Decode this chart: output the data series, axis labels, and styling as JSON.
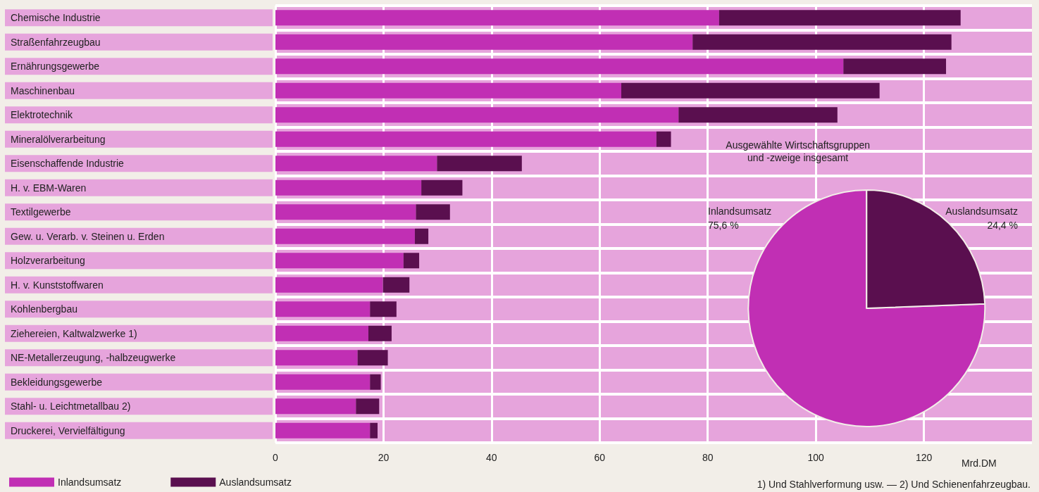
{
  "chart_data": [
    {
      "type": "bar",
      "orientation": "horizontal",
      "stacked": true,
      "categories": [
        "Chemische Industrie",
        "Straßenfahrzeugbau",
        "Ernährungsgewerbe",
        "Maschinenbau",
        "Elektrotechnik",
        "Mineralölverarbeitung",
        "Eisenschaffende Industrie",
        "H. v. EBM-Waren",
        "Textilgewerbe",
        "Gew. u. Verarb. v. Steinen u. Erden",
        "Holzverarbeitung",
        "H. v. Kunststoffwaren",
        "Kohlenbergbau",
        "Ziehereien, Kaltwalzwerke 1)",
        "NE-Metallerzeugung, -halbzeugwerke",
        "Bekleidungsgewerbe",
        "Stahl- u. Leichtmetallbau 2)",
        "Druckerei, Vervielfältigung"
      ],
      "series": [
        {
          "name": "Inlandsumsatz",
          "color": "#c12fb4",
          "values": [
            82.1,
            77.2,
            105.1,
            64.0,
            74.6,
            70.5,
            29.9,
            27.0,
            26.0,
            25.8,
            23.7,
            19.9,
            17.5,
            17.2,
            15.2,
            17.5,
            14.9,
            17.5
          ]
        },
        {
          "name": "Auslandsumsatz",
          "color": "#5a0f4f",
          "values": [
            44.7,
            47.9,
            19.0,
            47.8,
            29.4,
            2.7,
            15.7,
            7.6,
            6.3,
            2.5,
            2.9,
            4.9,
            4.9,
            4.3,
            5.6,
            2.0,
            4.3,
            1.4
          ]
        }
      ],
      "xlim": [
        0,
        140
      ],
      "xticks": [
        0,
        20,
        40,
        60,
        80,
        100,
        120
      ],
      "xlabel": "Mrd.DM",
      "grid": true,
      "legend": "bottom left",
      "annotations": [
        "1) Und Stahlverformung usw. — 2) Und Schienenfahrzeugbau."
      ]
    },
    {
      "type": "pie",
      "title": "Ausgewählte Wirtschaftsgruppen\nund -zweige insgesamt",
      "categories": [
        "Inlandsumsatz",
        "Auslandsumsatz"
      ],
      "values": [
        75.6,
        24.4
      ],
      "colors": [
        "#c12fb4",
        "#5a0f4f"
      ],
      "value_labels": [
        "75,6 %",
        "24,4 %"
      ]
    }
  ]
}
